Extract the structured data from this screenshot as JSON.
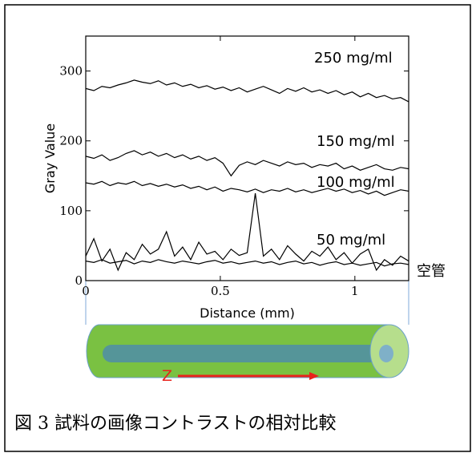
{
  "chart_data": {
    "type": "line",
    "x": [
      0,
      0.03,
      0.06,
      0.09,
      0.12,
      0.15,
      0.18,
      0.21,
      0.24,
      0.27,
      0.3,
      0.33,
      0.36,
      0.39,
      0.42,
      0.45,
      0.48,
      0.51,
      0.54,
      0.57,
      0.6,
      0.63,
      0.66,
      0.69,
      0.72,
      0.75,
      0.78,
      0.81,
      0.84,
      0.87,
      0.9,
      0.93,
      0.96,
      0.99,
      1.02,
      1.05,
      1.08,
      1.11,
      1.14,
      1.17,
      1.2
    ],
    "series": [
      {
        "color": "#000000",
        "values": [
          275,
          272,
          278,
          276,
          280,
          283,
          287,
          284,
          282,
          286,
          280,
          283,
          278,
          281,
          276,
          279,
          274,
          277,
          272,
          276,
          270,
          274,
          278,
          273,
          268,
          275,
          271,
          276,
          270,
          273,
          268,
          272,
          266,
          270,
          263,
          268,
          262,
          265,
          260,
          262,
          256
        ]
      },
      {
        "color": "#000000",
        "values": [
          178,
          175,
          180,
          172,
          176,
          182,
          186,
          180,
          184,
          178,
          182,
          176,
          180,
          174,
          178,
          172,
          176,
          168,
          150,
          165,
          170,
          166,
          172,
          168,
          164,
          170,
          166,
          168,
          162,
          166,
          164,
          168,
          160,
          164,
          158,
          162,
          166,
          160,
          158,
          162,
          160
        ]
      },
      {
        "color": "#000000",
        "values": [
          140,
          138,
          142,
          136,
          140,
          138,
          142,
          136,
          139,
          135,
          138,
          134,
          137,
          132,
          135,
          130,
          134,
          128,
          132,
          130,
          127,
          131,
          126,
          130,
          128,
          132,
          127,
          130,
          126,
          129,
          132,
          128,
          131,
          126,
          129,
          124,
          128,
          122,
          126,
          130,
          128
        ]
      },
      {
        "color": "#000000",
        "values": [
          35,
          60,
          28,
          45,
          15,
          40,
          30,
          52,
          38,
          45,
          70,
          35,
          48,
          30,
          55,
          38,
          42,
          30,
          45,
          36,
          40,
          125,
          35,
          45,
          30,
          50,
          38,
          28,
          42,
          35,
          48,
          30,
          40,
          25,
          38,
          45,
          15,
          30,
          22,
          35,
          28
        ]
      },
      {
        "color": "#000000",
        "values": [
          28,
          26,
          30,
          25,
          27,
          29,
          24,
          28,
          26,
          30,
          27,
          25,
          28,
          26,
          24,
          27,
          29,
          25,
          27,
          24,
          26,
          28,
          25,
          27,
          23,
          26,
          28,
          24,
          26,
          22,
          25,
          27,
          23,
          25,
          22,
          24,
          26,
          21,
          24,
          25,
          23
        ]
      }
    ],
    "annotations": [
      "250 mg/ml",
      "150 mg/ml",
      "100 mg/ml",
      "50 mg/ml",
      "空管"
    ],
    "x_label": "Distance (mm)",
    "y_label": "Gray Value",
    "xlim": [
      0,
      1.2
    ],
    "ylim": [
      0,
      350
    ],
    "xticks": [
      0,
      0.5,
      1
    ],
    "yticks": [
      0,
      100,
      200,
      300
    ]
  },
  "diagram": {
    "axis_label": "Z"
  },
  "caption": "図 3 試料の画像コントラストの相対比較"
}
